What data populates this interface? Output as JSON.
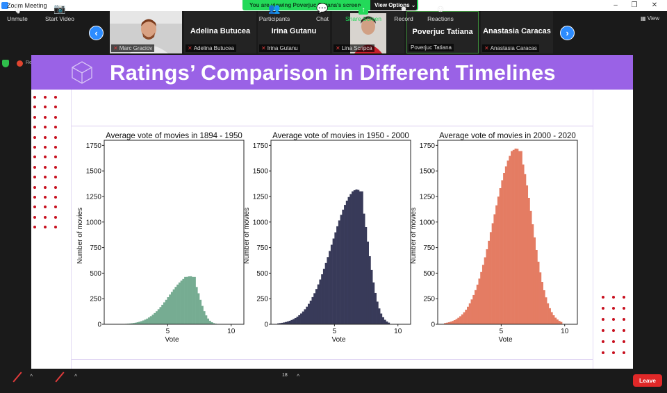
{
  "window": {
    "title": "Zoom Meeting"
  },
  "banner": {
    "message": "You are viewing Poverjuc Tatiana's screen",
    "view_options": "View Options ⌄"
  },
  "gallery": {
    "view_label": "View",
    "tiles": [
      {
        "name": "Marc Graciov",
        "has_video": true
      },
      {
        "name": "Adelina Butucea",
        "has_video": false
      },
      {
        "name": "Irina Gutanu",
        "has_video": false
      },
      {
        "name": "Lina Scripca",
        "has_video": true
      },
      {
        "name": "Poverjuc Tatiana",
        "has_video": false,
        "active_speaker": true
      },
      {
        "name": "Anastasia Caracas",
        "has_video": false
      }
    ]
  },
  "status": {
    "recording_label": "Recording"
  },
  "slide": {
    "title": "Ratings’ Comparison in Different Timelines",
    "header_color": "#9a62e6",
    "dot_color": "#c80f1e"
  },
  "chart_data": [
    {
      "type": "histogram",
      "title": "Average vote of movies in 1894 - 1950",
      "xlabel": "Vote",
      "ylabel": "Number of movies",
      "xlim": [
        0,
        11
      ],
      "ylim": [
        0,
        1800
      ],
      "xticks": [
        5,
        10
      ],
      "yticks": [
        0,
        250,
        500,
        750,
        1000,
        1250,
        1500,
        1750
      ],
      "color": "#76ac92",
      "peak": 470,
      "x_start": 1.5,
      "x_peak": 6.8,
      "x_end": 8.8
    },
    {
      "type": "histogram",
      "title": "Average vote of movies in 1950 - 2000",
      "xlabel": "Vote",
      "ylabel": "Number of movies",
      "xlim": [
        0,
        11
      ],
      "ylim": [
        0,
        1800
      ],
      "xticks": [
        5,
        10
      ],
      "yticks": [
        0,
        250,
        500,
        750,
        1000,
        1250,
        1500,
        1750
      ],
      "color": "#383a59",
      "peak": 1320,
      "x_start": 0.5,
      "x_peak": 6.8,
      "x_end": 9.3
    },
    {
      "type": "histogram",
      "title": "Average vote of movies in 2000 - 2020",
      "xlabel": "Vote",
      "ylabel": "Number of movies",
      "xlim": [
        0,
        11
      ],
      "ylim": [
        0,
        1800
      ],
      "xticks": [
        5,
        10
      ],
      "yticks": [
        0,
        250,
        500,
        750,
        1000,
        1250,
        1500,
        1750
      ],
      "color": "#e47c63",
      "peak": 1720,
      "x_start": 0.5,
      "x_peak": 6.2,
      "x_end": 9.8
    }
  ],
  "toolbar": {
    "unmute": "Unmute",
    "start_video": "Start Video",
    "participants": "Participants",
    "participants_count": "18",
    "chat": "Chat",
    "share_screen": "Share Screen",
    "record": "Record",
    "reactions": "Reactions",
    "leave": "Leave"
  }
}
